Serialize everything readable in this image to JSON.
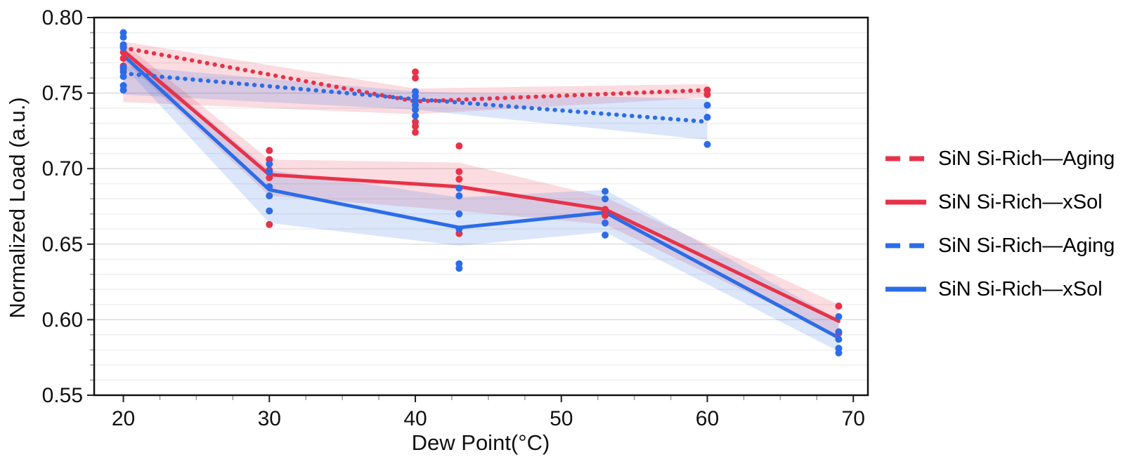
{
  "figure": {
    "background": "#ffffff",
    "colors": {
      "red": "#e73249",
      "blue": "#2c6ce8",
      "axis": "#111111",
      "grid_major": "#dcdcdc",
      "grid_minor": "#efefef"
    }
  },
  "legend": {
    "position": "right",
    "items": [
      {
        "label": "SiN Si-Rich—Aging",
        "color": "#e73249",
        "dash": true
      },
      {
        "label": "SiN Si-Rich—xSol",
        "color": "#e73249",
        "dash": false
      },
      {
        "label": "SiN Si-Rich—Aging",
        "color": "#2c6ce8",
        "dash": true
      },
      {
        "label": "SiN Si-Rich—xSol",
        "color": "#2c6ce8",
        "dash": false
      }
    ]
  },
  "chart_data": {
    "type": "line",
    "title": "",
    "xlabel": "Dew Point(°C)",
    "ylabel": "Normalized Load (a.u.)",
    "xlim": [
      18,
      71
    ],
    "ylim": [
      0.55,
      0.8
    ],
    "x_ticks": [
      20,
      30,
      40,
      50,
      60,
      70
    ],
    "x_tick_labels": [
      "20",
      "30",
      "40",
      "50",
      "60",
      "70"
    ],
    "x_minor_step": 2.5,
    "y_ticks": [
      0.55,
      0.6,
      0.65,
      0.7,
      0.75,
      0.8
    ],
    "y_tick_labels": [
      "0.55",
      "0.60",
      "0.65",
      "0.70",
      "0.75",
      "0.80"
    ],
    "y_minor_step": 0.01,
    "grid": "horizontal-only",
    "band_opacity": 0.17,
    "legend_position": "right",
    "series": [
      {
        "name": "SiN Si-Rich—Aging",
        "color": "#e73249",
        "style": "dashed",
        "x": [
          20,
          40,
          60
        ],
        "y": [
          0.78,
          0.7445,
          0.752
        ],
        "band_upper": [
          0.784,
          0.753,
          0.756
        ],
        "band_lower": [
          0.744,
          0.736,
          0.747
        ],
        "scatter": {
          "x": [
            20,
            20,
            40,
            40,
            40,
            40,
            40,
            60,
            60
          ],
          "y": [
            0.781,
            0.777,
            0.764,
            0.76,
            0.731,
            0.728,
            0.724,
            0.752,
            0.749
          ]
        }
      },
      {
        "name": "SiN Si-Rich—xSol",
        "color": "#e73249",
        "style": "solid",
        "x": [
          20,
          30,
          43,
          53,
          69
        ],
        "y": [
          0.778,
          0.696,
          0.688,
          0.673,
          0.599
        ],
        "band_upper": [
          0.783,
          0.706,
          0.704,
          0.681,
          0.61
        ],
        "band_lower": [
          0.772,
          0.682,
          0.672,
          0.663,
          0.589
        ],
        "scatter": {
          "x": [
            20,
            20,
            20,
            30,
            30,
            30,
            30,
            30,
            43,
            43,
            43,
            43,
            53,
            53,
            69,
            69
          ],
          "y": [
            0.773,
            0.768,
            0.766,
            0.712,
            0.706,
            0.699,
            0.694,
            0.663,
            0.715,
            0.698,
            0.693,
            0.657,
            0.673,
            0.669,
            0.609,
            0.591
          ]
        }
      },
      {
        "name": "SiN Si-Rich—Aging",
        "color": "#2c6ce8",
        "style": "dashed",
        "x": [
          20,
          40,
          60
        ],
        "y": [
          0.763,
          0.746,
          0.731
        ],
        "band_upper": [
          0.768,
          0.751,
          0.746
        ],
        "band_lower": [
          0.749,
          0.739,
          0.719
        ],
        "scatter": {
          "x": [
            20,
            20,
            20,
            20,
            20,
            40,
            40,
            40,
            40,
            40,
            40,
            60,
            60,
            60
          ],
          "y": [
            0.79,
            0.787,
            0.782,
            0.764,
            0.761,
            0.751,
            0.748,
            0.745,
            0.742,
            0.739,
            0.735,
            0.742,
            0.734,
            0.716
          ]
        }
      },
      {
        "name": "SiN Si-Rich—xSol",
        "color": "#2c6ce8",
        "style": "solid",
        "x": [
          20,
          30,
          43,
          53,
          69
        ],
        "y": [
          0.775,
          0.686,
          0.661,
          0.671,
          0.588
        ],
        "band_upper": [
          0.78,
          0.699,
          0.681,
          0.686,
          0.6
        ],
        "band_lower": [
          0.768,
          0.664,
          0.649,
          0.658,
          0.579
        ],
        "scatter": {
          "x": [
            20,
            20,
            20,
            20,
            30,
            30,
            30,
            30,
            30,
            43,
            43,
            43,
            43,
            43,
            43,
            53,
            53,
            53,
            53,
            69,
            69,
            69,
            69,
            69
          ],
          "y": [
            0.78,
            0.767,
            0.755,
            0.752,
            0.703,
            0.698,
            0.688,
            0.682,
            0.672,
            0.687,
            0.682,
            0.67,
            0.66,
            0.637,
            0.634,
            0.685,
            0.68,
            0.664,
            0.656,
            0.602,
            0.592,
            0.587,
            0.581,
            0.578
          ]
        }
      }
    ]
  }
}
